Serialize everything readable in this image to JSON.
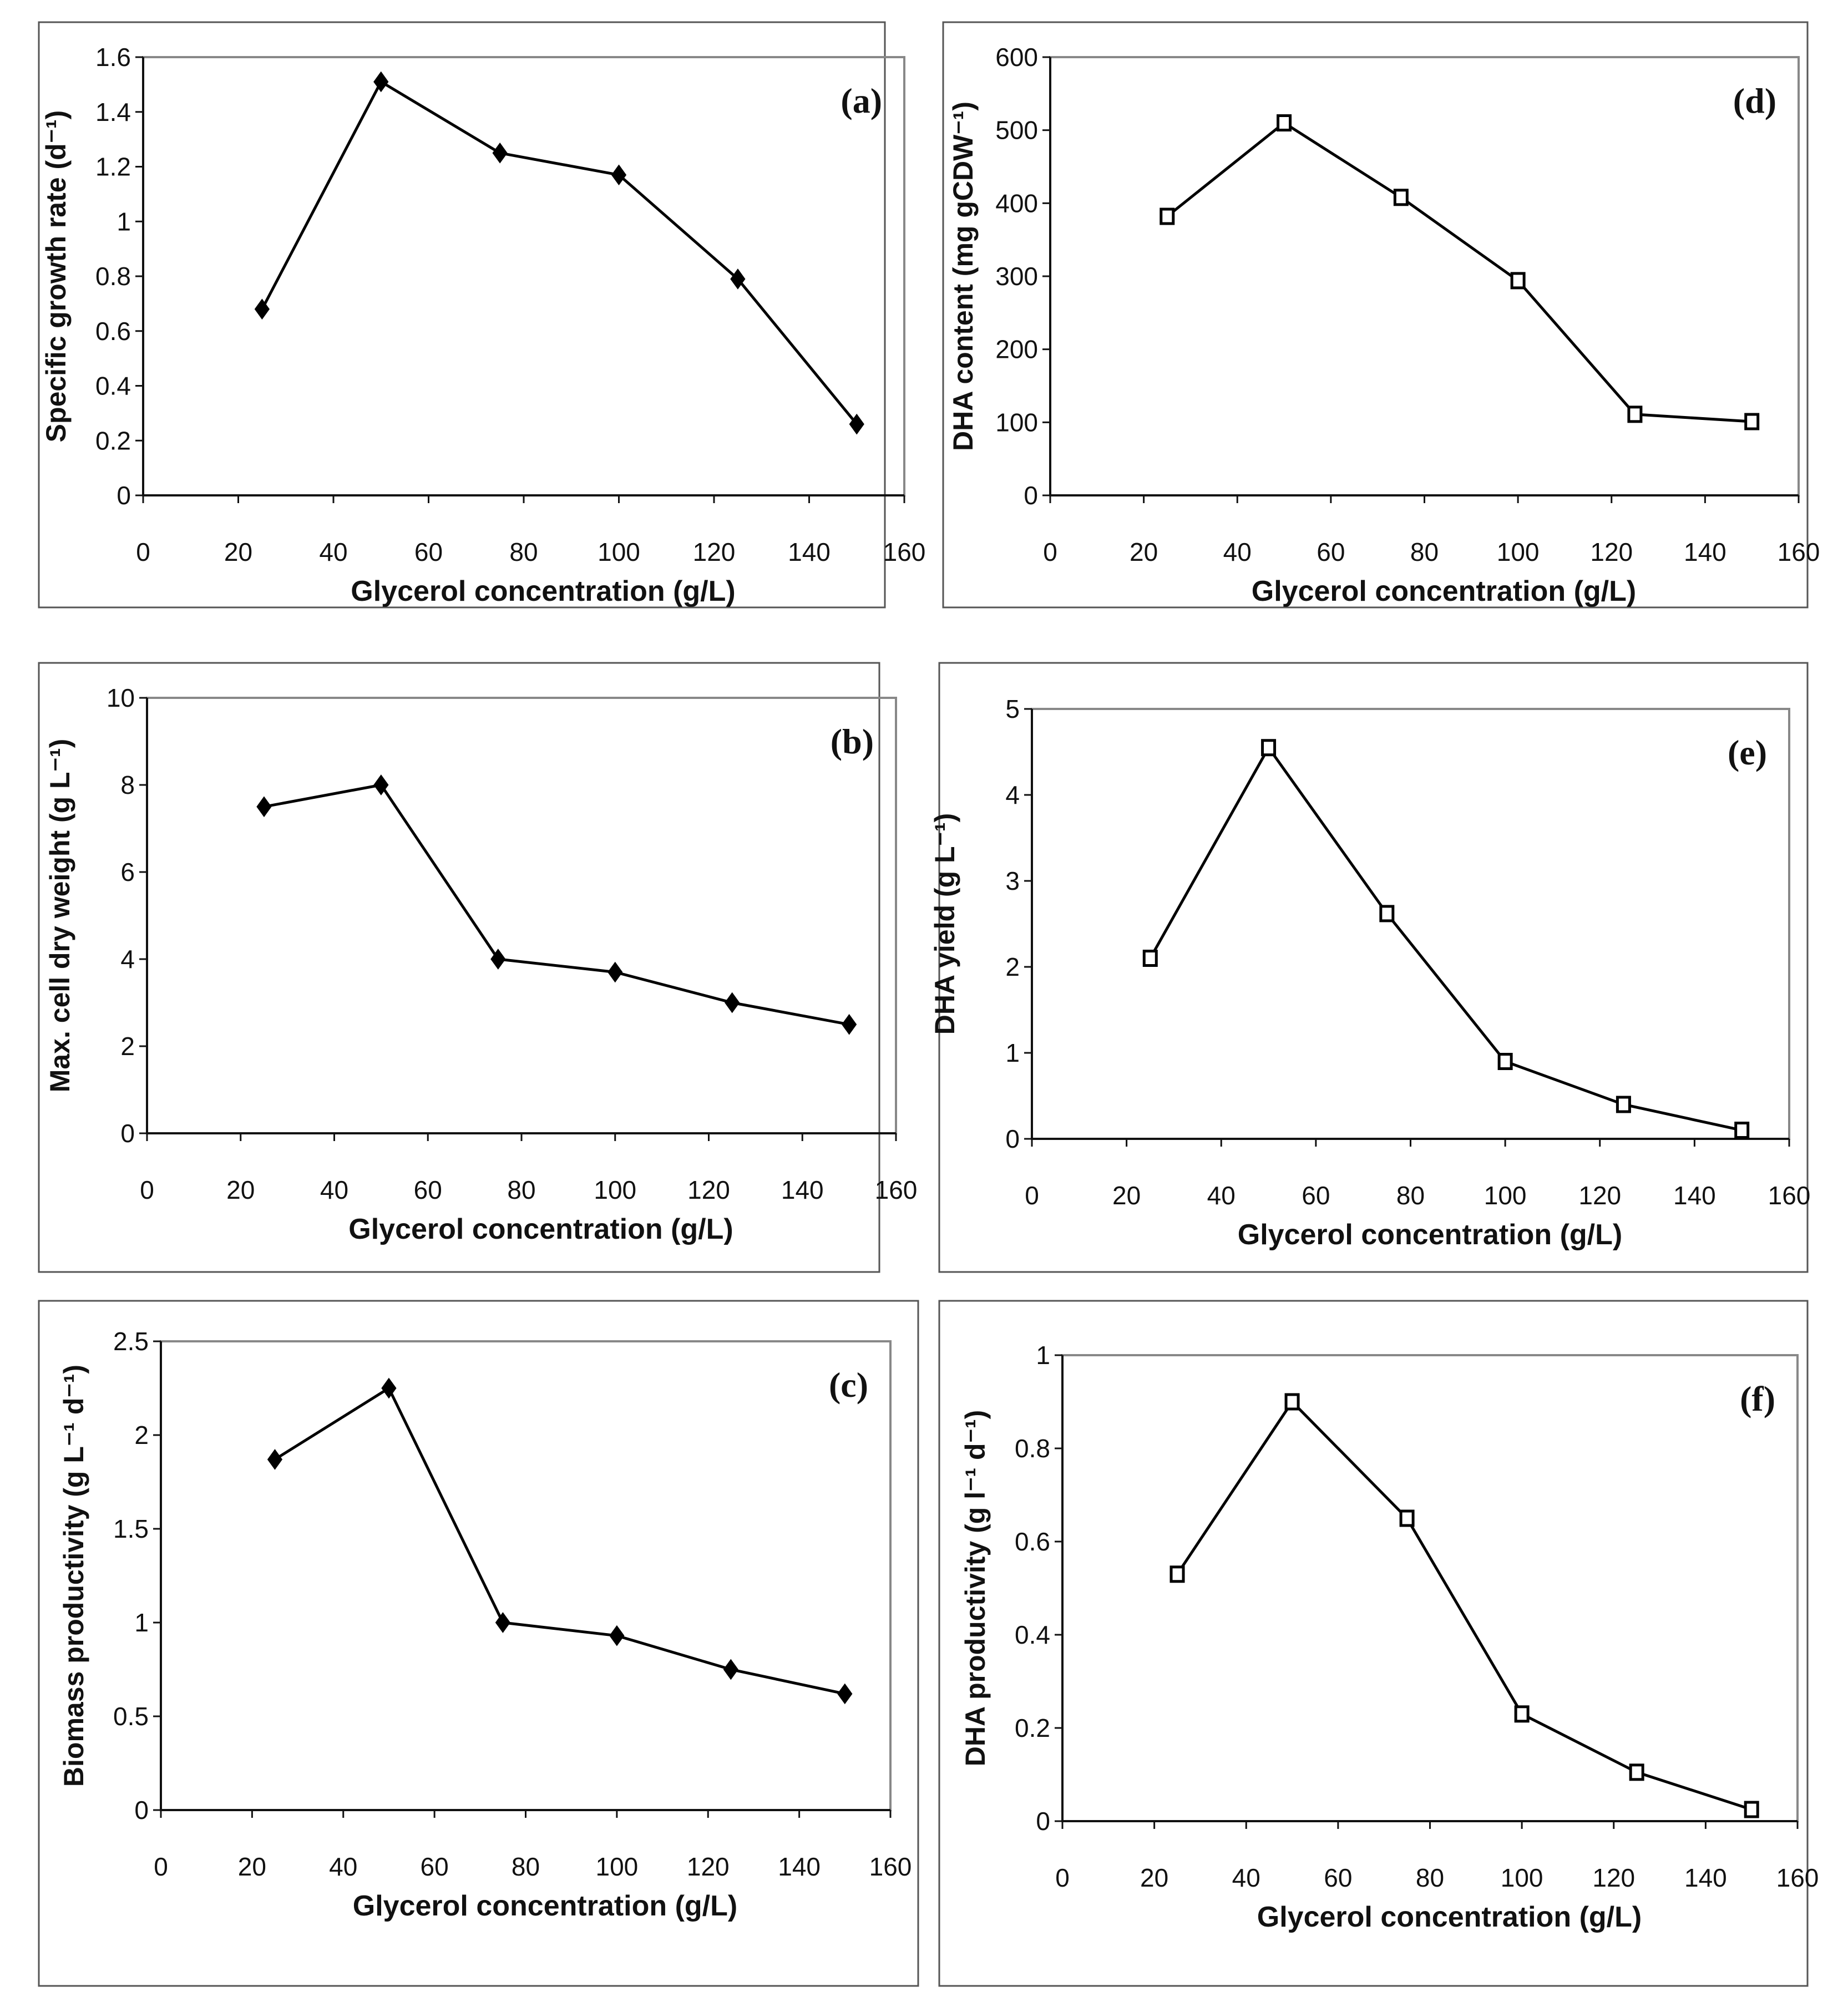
{
  "figure": {
    "x_title": "Glycerol concentration (g/L)"
  },
  "chart_data": [
    {
      "id": "a",
      "type": "line",
      "panel_label": "(a)",
      "title": "",
      "xlabel": "Glycerol concentration (g/L)",
      "ylabel": "Specific growth rate (d⁻¹)",
      "marker": "diamond",
      "xlim": [
        0,
        160
      ],
      "ylim": [
        0,
        1.6
      ],
      "x_ticks": [
        0,
        20,
        40,
        60,
        80,
        100,
        120,
        140,
        160
      ],
      "y_ticks": [
        0,
        0.2,
        0.4,
        0.6,
        0.8,
        1,
        1.2,
        1.4,
        1.6
      ],
      "x_tick_labels": [
        "0",
        "20",
        "40",
        "60",
        "80",
        "100",
        "120",
        "140",
        "160"
      ],
      "y_tick_labels": [
        "0",
        "0.2",
        "0.4",
        "0.6",
        "0.8",
        "1",
        "1.2",
        "1.4",
        "1.6"
      ],
      "x": [
        25,
        50,
        75,
        100,
        125,
        150
      ],
      "values": [
        0.68,
        1.51,
        1.25,
        1.17,
        0.79,
        0.26
      ],
      "grid": false
    },
    {
      "id": "b",
      "type": "line",
      "panel_label": "(b)",
      "title": "",
      "xlabel": "Glycerol concentration (g/L)",
      "ylabel": "Max. cell dry weight (g L⁻¹)",
      "marker": "diamond",
      "xlim": [
        0,
        160
      ],
      "ylim": [
        0,
        10
      ],
      "x_ticks": [
        0,
        20,
        40,
        60,
        80,
        100,
        120,
        140,
        160
      ],
      "y_ticks": [
        0,
        2,
        4,
        6,
        8,
        10
      ],
      "x_tick_labels": [
        "0",
        "20",
        "40",
        "60",
        "80",
        "100",
        "120",
        "140",
        "160"
      ],
      "y_tick_labels": [
        "0",
        "2",
        "4",
        "6",
        "8",
        "10"
      ],
      "x": [
        25,
        50,
        75,
        100,
        125,
        150
      ],
      "values": [
        7.5,
        8.0,
        4.0,
        3.7,
        3.0,
        2.5
      ],
      "grid": false
    },
    {
      "id": "c",
      "type": "line",
      "panel_label": "(c)",
      "title": "",
      "xlabel": "Glycerol concentration (g/L)",
      "ylabel": "Biomass productivity (g L⁻¹ d⁻¹)",
      "marker": "diamond",
      "xlim": [
        0,
        160
      ],
      "ylim": [
        0,
        2.5
      ],
      "x_ticks": [
        0,
        20,
        40,
        60,
        80,
        100,
        120,
        140,
        160
      ],
      "y_ticks": [
        0,
        0.5,
        1,
        1.5,
        2,
        2.5
      ],
      "x_tick_labels": [
        "0",
        "20",
        "40",
        "60",
        "80",
        "100",
        "120",
        "140",
        "160"
      ],
      "y_tick_labels": [
        "0",
        "0.5",
        "1",
        "1.5",
        "2",
        "2.5"
      ],
      "x": [
        25,
        50,
        75,
        100,
        125,
        150
      ],
      "values": [
        1.87,
        2.25,
        1.0,
        0.93,
        0.75,
        0.62
      ],
      "grid": false
    },
    {
      "id": "d",
      "type": "line",
      "panel_label": "(d)",
      "title": "",
      "xlabel": "Glycerol concentration (g/L)",
      "ylabel": "DHA content (mg gCDW⁻¹)",
      "marker": "square",
      "xlim": [
        0,
        160
      ],
      "ylim": [
        0,
        600
      ],
      "x_ticks": [
        0,
        20,
        40,
        60,
        80,
        100,
        120,
        140,
        160
      ],
      "y_ticks": [
        0,
        100,
        200,
        300,
        400,
        500,
        600
      ],
      "x_tick_labels": [
        "0",
        "20",
        "40",
        "60",
        "80",
        "100",
        "120",
        "140",
        "160"
      ],
      "y_tick_labels": [
        "0",
        "100",
        "200",
        "300",
        "400",
        "500",
        "600"
      ],
      "x": [
        25,
        50,
        75,
        100,
        125,
        150
      ],
      "values": [
        382,
        510,
        408,
        294,
        111,
        101
      ],
      "grid": false
    },
    {
      "id": "e",
      "type": "line",
      "panel_label": "(e)",
      "title": "",
      "xlabel": "Glycerol concentration (g/L)",
      "ylabel": "DHA yield (g L⁻¹)",
      "marker": "square",
      "xlim": [
        0,
        160
      ],
      "ylim": [
        0,
        5
      ],
      "x_ticks": [
        0,
        20,
        40,
        60,
        80,
        100,
        120,
        140,
        160
      ],
      "y_ticks": [
        0,
        1,
        2,
        3,
        4,
        5
      ],
      "x_tick_labels": [
        "0",
        "20",
        "40",
        "60",
        "80",
        "100",
        "120",
        "140",
        "160"
      ],
      "y_tick_labels": [
        "0",
        "1",
        "2",
        "3",
        "4",
        "5"
      ],
      "x": [
        25,
        50,
        75,
        100,
        125,
        150
      ],
      "values": [
        2.1,
        4.55,
        2.62,
        0.9,
        0.4,
        0.1
      ],
      "grid": false
    },
    {
      "id": "f",
      "type": "line",
      "panel_label": "(f)",
      "title": "",
      "xlabel": "Glycerol concentration (g/L)",
      "ylabel": "DHA productivity (g l⁻¹ d⁻¹)",
      "marker": "square",
      "xlim": [
        0,
        160
      ],
      "ylim": [
        0,
        1
      ],
      "x_ticks": [
        0,
        20,
        40,
        60,
        80,
        100,
        120,
        140,
        160
      ],
      "y_ticks": [
        0,
        0.2,
        0.4,
        0.6,
        0.8,
        1
      ],
      "x_tick_labels": [
        "0",
        "20",
        "40",
        "60",
        "80",
        "100",
        "120",
        "140",
        "160"
      ],
      "y_tick_labels": [
        "0",
        "0.2",
        "0.4",
        "0.6",
        "0.8",
        "1"
      ],
      "x": [
        25,
        50,
        75,
        100,
        125,
        150
      ],
      "values": [
        0.53,
        0.9,
        0.65,
        0.23,
        0.105,
        0.025
      ],
      "grid": false
    }
  ]
}
